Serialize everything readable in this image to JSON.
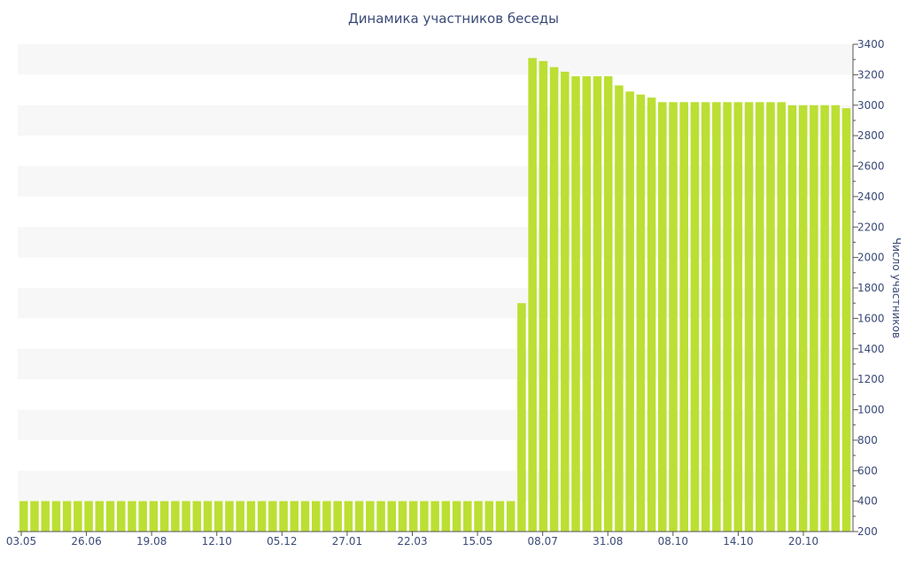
{
  "chart_data": {
    "type": "bar",
    "title": "Динамика участников беседы",
    "ylabel": "Число участников",
    "xlabel": "",
    "ylim": [
      200,
      3400
    ],
    "yticks": [
      200,
      400,
      600,
      800,
      1000,
      1200,
      1400,
      1600,
      1800,
      2000,
      2200,
      2400,
      2600,
      2800,
      3000,
      3200,
      3400
    ],
    "y_axis_position": "right",
    "grid": "alternating horizontal bands",
    "bar_color": "#bbdf33",
    "band_color": "#f7f7f7",
    "text_color": "#3a4a78",
    "xtick_labels": [
      "03.05",
      "26.06",
      "19.08",
      "12.10",
      "05.12",
      "27.01",
      "22.03",
      "15.05",
      "08.07",
      "31.08",
      "08.10",
      "14.10",
      "20.10"
    ],
    "values": [
      400,
      400,
      400,
      400,
      400,
      400,
      400,
      400,
      400,
      400,
      400,
      400,
      400,
      400,
      400,
      400,
      400,
      400,
      400,
      400,
      400,
      400,
      400,
      400,
      400,
      400,
      400,
      400,
      400,
      400,
      400,
      400,
      400,
      400,
      400,
      400,
      400,
      400,
      400,
      400,
      400,
      400,
      400,
      400,
      400,
      400,
      1700,
      3310,
      3290,
      3250,
      3220,
      3190,
      3190,
      3190,
      3190,
      3130,
      3090,
      3070,
      3050,
      3020,
      3020,
      3020,
      3020,
      3020,
      3020,
      3020,
      3020,
      3020,
      3020,
      3020,
      3020,
      3000,
      3000,
      3000,
      3000,
      3000,
      2980
    ]
  }
}
